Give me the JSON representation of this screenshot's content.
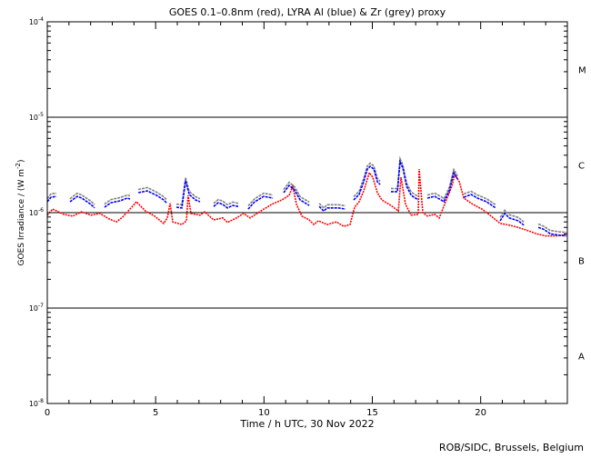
{
  "chart_data": {
    "type": "line",
    "title": "GOES 0.1–0.8nm (red), LYRA Al (blue) & Zr (grey) proxy",
    "xlabel": "Time / h UTC, 30 Nov 2022",
    "ylabel": "GOES Irradiance / (W m",
    "ylabel_exp": "-2",
    "ylabel_close": ")",
    "xlim": [
      0,
      24
    ],
    "ylim": [
      1e-08,
      0.0001
    ],
    "yscale": "log",
    "value_unit": 1e-06,
    "xticks": [
      {
        "v": 0,
        "label": "0"
      },
      {
        "v": 5,
        "label": "5"
      },
      {
        "v": 10,
        "label": "10"
      },
      {
        "v": 15,
        "label": "15"
      },
      {
        "v": 20,
        "label": "20"
      }
    ],
    "yticks": [
      {
        "v": -4,
        "base": "10",
        "exp": "-4"
      },
      {
        "v": -5,
        "base": "10",
        "exp": "-5"
      },
      {
        "v": -6,
        "base": "10",
        "exp": "-6"
      },
      {
        "v": -7,
        "base": "10",
        "exp": "-7"
      },
      {
        "v": -8,
        "base": "10",
        "exp": "-8"
      }
    ],
    "class_lines": [
      1e-05,
      1e-06,
      1e-07
    ],
    "class_labels": [
      {
        "label": "M",
        "v": -4.5
      },
      {
        "label": "C",
        "v": -5.5
      },
      {
        "label": "B",
        "v": -6.5
      },
      {
        "label": "A",
        "v": -7.5
      }
    ],
    "credit": "ROB/SIDC, Brussels, Belgium",
    "series": [
      {
        "name": "GOES 0.1-0.8nm",
        "color": "#ff0000",
        "segments": [
          [
            [
              0.0,
              0.94
            ],
            [
              0.25,
              1.09
            ],
            [
              0.76,
              0.96
            ],
            [
              1.17,
              0.92
            ],
            [
              1.59,
              1.02
            ],
            [
              2.01,
              0.94
            ],
            [
              2.43,
              0.98
            ],
            [
              2.85,
              0.86
            ],
            [
              3.19,
              0.8
            ],
            [
              3.48,
              0.9
            ],
            [
              3.9,
              1.14
            ],
            [
              4.11,
              1.3
            ],
            [
              4.53,
              1.04
            ],
            [
              4.95,
              0.92
            ],
            [
              5.37,
              0.77
            ],
            [
              5.54,
              0.88
            ],
            [
              5.67,
              1.25
            ],
            [
              5.79,
              0.8
            ],
            [
              6.21,
              0.75
            ],
            [
              6.42,
              0.82
            ],
            [
              6.5,
              1.52
            ],
            [
              6.63,
              0.98
            ],
            [
              7.05,
              0.94
            ],
            [
              7.26,
              1.02
            ],
            [
              7.68,
              0.84
            ],
            [
              8.1,
              0.88
            ],
            [
              8.31,
              0.79
            ],
            [
              8.73,
              0.88
            ],
            [
              9.06,
              0.98
            ],
            [
              9.36,
              0.88
            ],
            [
              9.99,
              1.09
            ],
            [
              10.41,
              1.24
            ],
            [
              10.83,
              1.36
            ],
            [
              11.16,
              1.52
            ],
            [
              11.33,
              1.89
            ],
            [
              11.5,
              1.22
            ],
            [
              11.75,
              0.92
            ],
            [
              12.09,
              0.84
            ],
            [
              12.3,
              0.75
            ],
            [
              12.51,
              0.82
            ],
            [
              12.92,
              0.75
            ],
            [
              13.34,
              0.8
            ],
            [
              13.68,
              0.72
            ],
            [
              13.97,
              0.75
            ],
            [
              14.18,
              1.14
            ],
            [
              14.39,
              1.3
            ],
            [
              14.6,
              1.69
            ],
            [
              14.86,
              2.62
            ],
            [
              15.02,
              2.35
            ],
            [
              15.23,
              1.62
            ],
            [
              15.44,
              1.36
            ],
            [
              15.86,
              1.19
            ],
            [
              16.2,
              1.04
            ],
            [
              16.32,
              2.35
            ],
            [
              16.53,
              1.22
            ],
            [
              16.79,
              0.94
            ],
            [
              17.12,
              0.96
            ],
            [
              17.16,
              2.86
            ],
            [
              17.33,
              1.0
            ],
            [
              17.54,
              0.92
            ],
            [
              17.88,
              0.96
            ],
            [
              18.09,
              0.88
            ],
            [
              18.38,
              1.3
            ],
            [
              18.67,
              1.89
            ],
            [
              18.8,
              2.51
            ],
            [
              19.01,
              2.11
            ],
            [
              19.22,
              1.42
            ],
            [
              19.64,
              1.22
            ],
            [
              20.06,
              1.09
            ],
            [
              20.48,
              0.92
            ],
            [
              20.9,
              0.77
            ],
            [
              21.32,
              0.74
            ],
            [
              21.74,
              0.7
            ],
            [
              22.16,
              0.65
            ],
            [
              22.58,
              0.6
            ],
            [
              23.0,
              0.57
            ],
            [
              23.5,
              0.57
            ],
            [
              23.96,
              0.59
            ]
          ]
        ]
      },
      {
        "name": "LYRA Zr proxy",
        "color": "#808080",
        "segments": [
          [
            [
              0.0,
              1.4
            ],
            [
              0.17,
              1.57
            ],
            [
              0.42,
              1.6
            ]
          ],
          [
            [
              1.05,
              1.4
            ],
            [
              1.38,
              1.6
            ],
            [
              1.59,
              1.53
            ],
            [
              2.01,
              1.32
            ],
            [
              2.18,
              1.21
            ]
          ],
          [
            [
              2.64,
              1.23
            ],
            [
              2.94,
              1.37
            ],
            [
              3.36,
              1.44
            ],
            [
              3.69,
              1.53
            ],
            [
              3.82,
              1.5
            ]
          ],
          [
            [
              4.2,
              1.75
            ],
            [
              4.62,
              1.83
            ],
            [
              5.04,
              1.64
            ],
            [
              5.37,
              1.47
            ],
            [
              5.5,
              1.37
            ]
          ],
          [
            [
              5.96,
              1.23
            ],
            [
              6.21,
              1.21
            ],
            [
              6.38,
              2.32
            ],
            [
              6.55,
              1.67
            ],
            [
              6.84,
              1.47
            ],
            [
              7.05,
              1.4
            ]
          ],
          [
            [
              7.68,
              1.25
            ],
            [
              7.89,
              1.37
            ],
            [
              8.1,
              1.32
            ],
            [
              8.31,
              1.21
            ],
            [
              8.56,
              1.29
            ],
            [
              8.81,
              1.25
            ]
          ],
          [
            [
              9.27,
              1.18
            ],
            [
              9.57,
              1.4
            ],
            [
              9.99,
              1.6
            ],
            [
              10.41,
              1.53
            ]
          ],
          [
            [
              10.91,
              1.75
            ],
            [
              11.16,
              2.08
            ],
            [
              11.41,
              1.87
            ],
            [
              11.67,
              1.47
            ],
            [
              12.09,
              1.29
            ]
          ],
          [
            [
              12.55,
              1.25
            ],
            [
              12.76,
              1.12
            ],
            [
              12.92,
              1.21
            ],
            [
              13.43,
              1.21
            ],
            [
              13.76,
              1.18
            ]
          ],
          [
            [
              14.14,
              1.47
            ],
            [
              14.39,
              1.67
            ],
            [
              14.6,
              2.28
            ],
            [
              14.77,
              3.09
            ],
            [
              14.9,
              3.3
            ],
            [
              15.07,
              3.09
            ],
            [
              15.23,
              2.28
            ],
            [
              15.36,
              2.13
            ]
          ],
          [
            [
              15.86,
              1.79
            ],
            [
              16.16,
              1.79
            ],
            [
              16.28,
              3.68
            ],
            [
              16.41,
              3.16
            ],
            [
              16.58,
              2.04
            ],
            [
              16.79,
              1.64
            ],
            [
              17.12,
              1.47
            ]
          ],
          [
            [
              17.54,
              1.53
            ],
            [
              17.88,
              1.6
            ],
            [
              18.17,
              1.47
            ],
            [
              18.3,
              1.4
            ],
            [
              18.55,
              1.83
            ],
            [
              18.76,
              2.83
            ],
            [
              18.93,
              2.43
            ]
          ],
          [
            [
              19.22,
              1.57
            ],
            [
              19.56,
              1.67
            ],
            [
              19.85,
              1.53
            ],
            [
              20.27,
              1.4
            ],
            [
              20.69,
              1.21
            ]
          ],
          [
            [
              20.9,
              0.89
            ],
            [
              21.11,
              1.06
            ],
            [
              21.32,
              0.95
            ],
            [
              21.74,
              0.89
            ],
            [
              21.99,
              0.8
            ]
          ],
          [
            [
              22.66,
              0.76
            ],
            [
              22.91,
              0.72
            ],
            [
              23.21,
              0.65
            ],
            [
              23.62,
              0.63
            ],
            [
              23.96,
              0.62
            ]
          ]
        ]
      },
      {
        "name": "LYRA Al proxy",
        "color": "#0000ff",
        "segments": [
          [
            [
              0.0,
              1.3
            ],
            [
              0.17,
              1.45
            ],
            [
              0.42,
              1.48
            ]
          ],
          [
            [
              1.05,
              1.3
            ],
            [
              1.38,
              1.48
            ],
            [
              1.59,
              1.42
            ],
            [
              2.01,
              1.22
            ],
            [
              2.18,
              1.12
            ]
          ],
          [
            [
              2.64,
              1.14
            ],
            [
              2.94,
              1.27
            ],
            [
              3.36,
              1.33
            ],
            [
              3.69,
              1.42
            ],
            [
              3.82,
              1.39
            ]
          ],
          [
            [
              4.2,
              1.62
            ],
            [
              4.62,
              1.69
            ],
            [
              5.04,
              1.52
            ],
            [
              5.37,
              1.36
            ],
            [
              5.5,
              1.27
            ]
          ],
          [
            [
              5.96,
              1.14
            ],
            [
              6.21,
              1.12
            ],
            [
              6.38,
              2.15
            ],
            [
              6.55,
              1.55
            ],
            [
              6.84,
              1.36
            ],
            [
              7.05,
              1.3
            ]
          ],
          [
            [
              7.68,
              1.16
            ],
            [
              7.89,
              1.27
            ],
            [
              8.1,
              1.22
            ],
            [
              8.31,
              1.12
            ],
            [
              8.56,
              1.19
            ],
            [
              8.81,
              1.16
            ]
          ],
          [
            [
              9.27,
              1.09
            ],
            [
              9.57,
              1.3
            ],
            [
              9.99,
              1.48
            ],
            [
              10.41,
              1.42
            ]
          ],
          [
            [
              10.91,
              1.62
            ],
            [
              11.16,
              1.93
            ],
            [
              11.41,
              1.73
            ],
            [
              11.67,
              1.36
            ],
            [
              12.09,
              1.19
            ]
          ],
          [
            [
              12.55,
              1.16
            ],
            [
              12.76,
              1.04
            ],
            [
              12.92,
              1.12
            ],
            [
              13.43,
              1.12
            ],
            [
              13.76,
              1.09
            ]
          ],
          [
            [
              14.14,
              1.36
            ],
            [
              14.39,
              1.55
            ],
            [
              14.6,
              2.11
            ],
            [
              14.77,
              2.86
            ],
            [
              14.9,
              3.06
            ],
            [
              15.07,
              2.86
            ],
            [
              15.23,
              2.11
            ],
            [
              15.36,
              1.97
            ]
          ],
          [
            [
              15.86,
              1.66
            ],
            [
              16.16,
              1.66
            ],
            [
              16.28,
              3.41
            ],
            [
              16.41,
              2.93
            ],
            [
              16.58,
              1.89
            ],
            [
              16.79,
              1.52
            ],
            [
              17.12,
              1.36
            ]
          ],
          [
            [
              17.54,
              1.42
            ],
            [
              17.88,
              1.48
            ],
            [
              18.17,
              1.36
            ],
            [
              18.3,
              1.3
            ],
            [
              18.55,
              1.69
            ],
            [
              18.76,
              2.62
            ],
            [
              18.93,
              2.25
            ]
          ],
          [
            [
              19.22,
              1.45
            ],
            [
              19.56,
              1.55
            ],
            [
              19.85,
              1.42
            ],
            [
              20.27,
              1.3
            ],
            [
              20.69,
              1.12
            ]
          ],
          [
            [
              20.9,
              0.82
            ],
            [
              21.11,
              0.98
            ],
            [
              21.32,
              0.88
            ],
            [
              21.74,
              0.82
            ],
            [
              21.99,
              0.74
            ]
          ],
          [
            [
              22.66,
              0.7
            ],
            [
              22.91,
              0.67
            ],
            [
              23.21,
              0.6
            ],
            [
              23.62,
              0.58
            ],
            [
              23.96,
              0.57
            ]
          ]
        ]
      }
    ]
  }
}
